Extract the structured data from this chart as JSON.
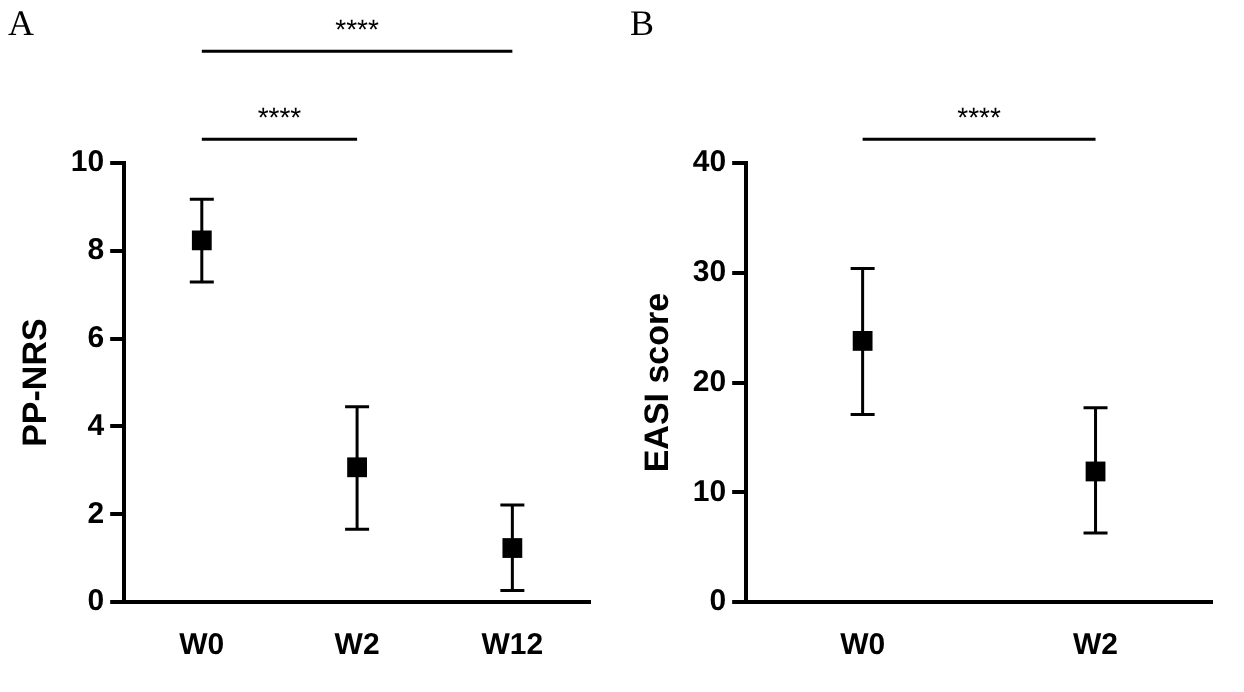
{
  "chart_data": [
    {
      "type": "scatter",
      "title": "A",
      "ylabel": "PP-NRS",
      "categories": [
        "W0",
        "W2",
        "W12"
      ],
      "values": [
        8.24,
        3.07,
        1.23
      ],
      "errors": [
        [
          7.29,
          9.18
        ],
        [
          1.66,
          4.45
        ],
        [
          0.26,
          2.21
        ]
      ],
      "color": "#000000",
      "marker": "square",
      "ylim": [
        0,
        10
      ],
      "yticks": [
        0,
        2,
        4,
        6,
        8,
        10
      ],
      "annotations": [
        "****",
        "****"
      ]
    },
    {
      "type": "scatter",
      "title": "B",
      "ylabel": "EASI score",
      "categories": [
        "W0",
        "W2"
      ],
      "values": [
        23.8,
        11.9
      ],
      "errors": [
        [
          17.1,
          30.4
        ],
        [
          6.3,
          17.7
        ]
      ],
      "color": "#000000",
      "marker": "square",
      "ylim": [
        0,
        40
      ],
      "yticks": [
        0,
        10,
        20,
        30,
        40
      ],
      "annotations": [
        "****"
      ]
    }
  ]
}
